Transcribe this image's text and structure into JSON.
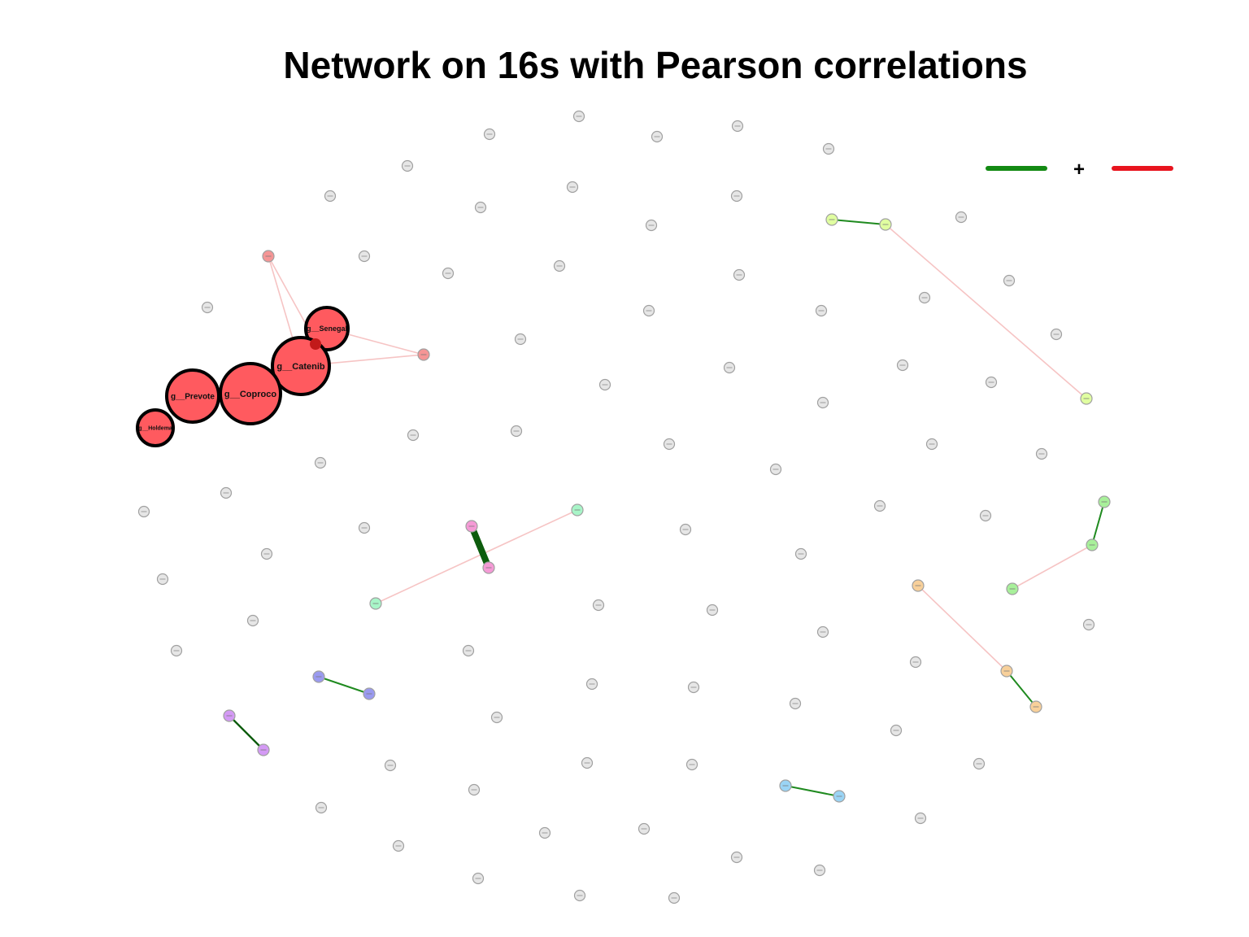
{
  "title": "Network on 16s with Pearson correlations",
  "legend": {
    "sign": "+",
    "positive_color": "#138a13",
    "negative_color": "#e8141e"
  },
  "colors": {
    "hub": "#ff5a5f",
    "hub_border": "#000000",
    "hub_small": "#f59595",
    "gray_node": "#e6e6e6",
    "gray_border": "#a0a0a0",
    "neg_edge": "#f6c4c4",
    "pos_edge": "#1f8a1f",
    "pos_edge_strong": "#0d5c0d",
    "lime": "#e0ffa0",
    "mint": "#a8f5c8",
    "pink": "#f59ad6",
    "blue": "#9a9af0",
    "violet": "#d49af5",
    "green": "#a8f09a",
    "orange": "#f8d09a",
    "sky": "#9ad4f5"
  },
  "chart_data": {
    "type": "network",
    "labeled_nodes": [
      "g__Senegal",
      "g__Catenib",
      "g__Prevote",
      "g__Coproco",
      "g__Holdema"
    ],
    "edge_legend": {
      "positive": "green",
      "negative": "red"
    }
  }
}
